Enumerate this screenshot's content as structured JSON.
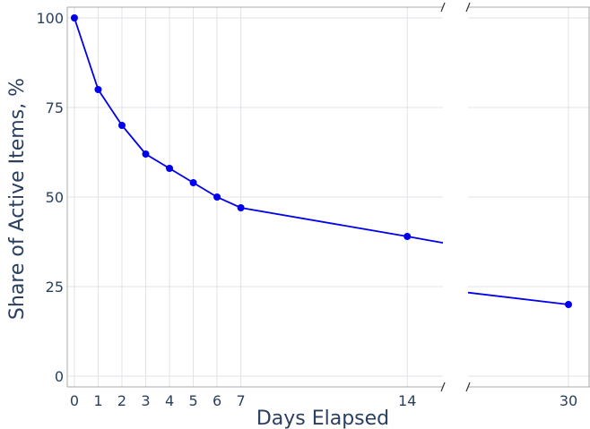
{
  "chart_data": {
    "type": "line",
    "title": "",
    "xlabel": "Days Elapsed",
    "ylabel": "Share of Active Items, %",
    "ylim": [
      0,
      100
    ],
    "y_ticks": [
      0,
      25,
      50,
      75,
      100
    ],
    "grid": true,
    "legend": "none",
    "color": "#0000ee",
    "x_axis_break": true,
    "x_segments": [
      {
        "range": [
          -0.3,
          15.5
        ],
        "ticks": [
          0,
          1,
          2,
          3,
          4,
          5,
          6,
          7,
          14
        ]
      },
      {
        "range": [
          27.2,
          30.6
        ],
        "ticks": [
          30
        ]
      }
    ],
    "series": [
      {
        "x": [
          0,
          1,
          2,
          3,
          4,
          5,
          6,
          7,
          14,
          30
        ],
        "y": [
          100,
          80,
          70,
          62,
          58,
          54,
          50,
          47,
          39,
          20
        ]
      }
    ]
  }
}
